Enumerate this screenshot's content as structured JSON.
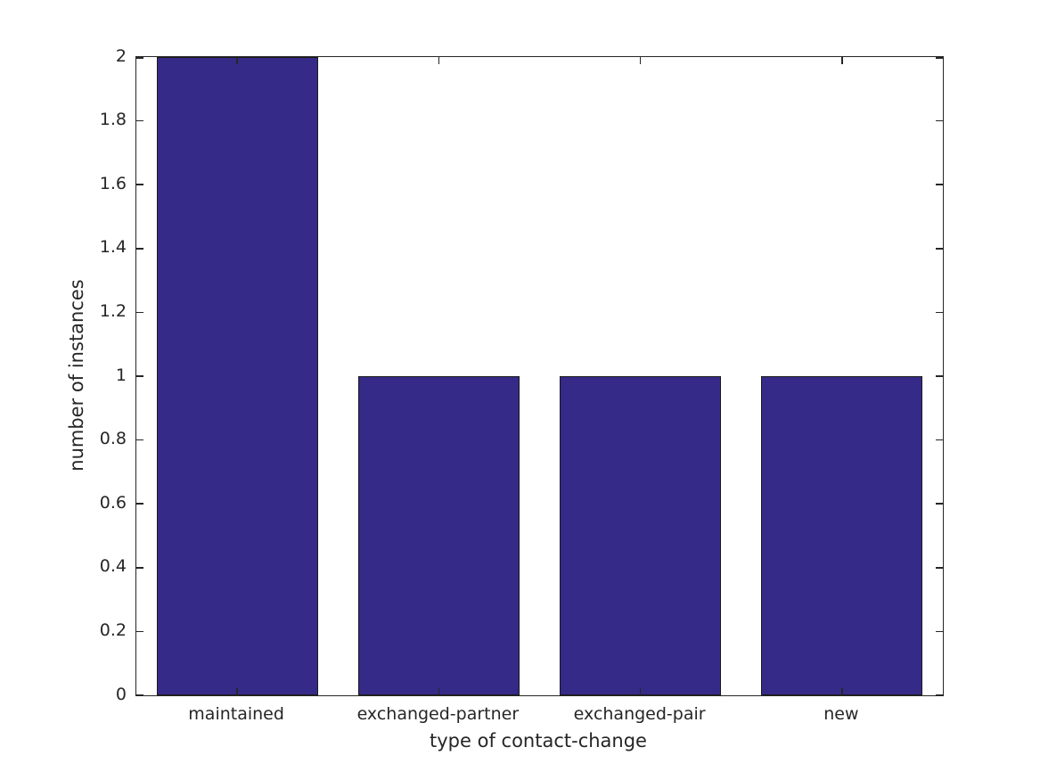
{
  "chart_data": {
    "type": "bar",
    "title": "",
    "categories": [
      "maintained",
      "exchanged-partner",
      "exchanged-pair",
      "new"
    ],
    "values": [
      2,
      1,
      1,
      1
    ],
    "xlabel": "type of contact-change",
    "ylabel": "number of instances",
    "ylim": [
      0,
      2
    ],
    "ytick_values": [
      0,
      0.2,
      0.4,
      0.6,
      0.8,
      1,
      1.2,
      1.4,
      1.6,
      1.8,
      2
    ],
    "ytick_labels": [
      "0",
      "0.2",
      "0.4",
      "0.6",
      "0.8",
      "1",
      "1.2",
      "1.4",
      "1.6",
      "1.8",
      "2"
    ],
    "grid": false,
    "legend": null,
    "bar_width_fraction": 0.8,
    "bar_fill_color": "#352A87",
    "bar_edge_color": "#1a1a1a",
    "axis_color": "#262626",
    "background_color": "#ffffff",
    "tick_direction": "in",
    "box": true
  }
}
